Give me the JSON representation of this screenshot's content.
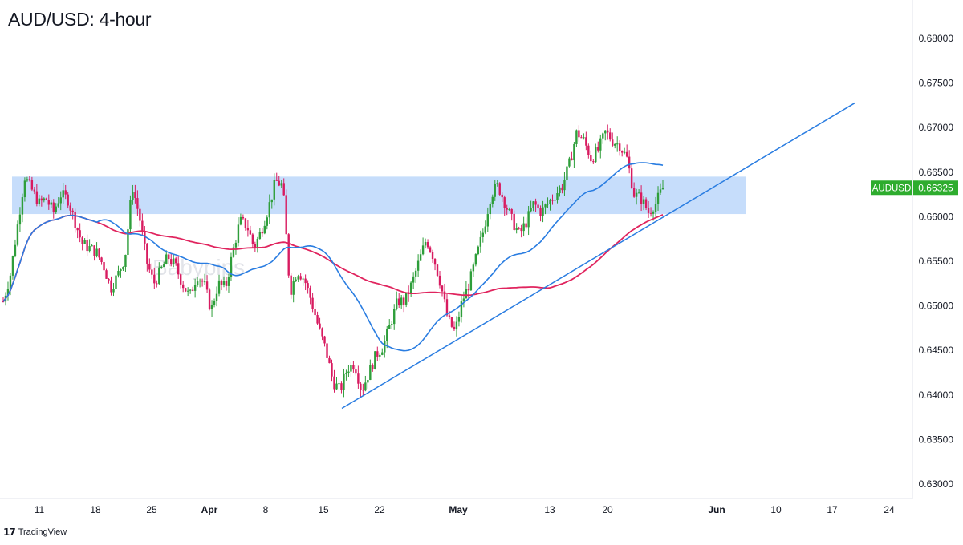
{
  "title": "AUD/USD: 4-hour",
  "watermark": "Babypips",
  "brand": {
    "logo": "𝟭𝟳",
    "name": "TradingView"
  },
  "last_price": {
    "symbol": "AUDUSD",
    "value": "0.66325"
  },
  "colors": {
    "up": "#26a69a",
    "up_body": "#2e9e3a",
    "down": "#d81b60",
    "ma_fast": "#2a7de1",
    "ma_slow": "#e0245e",
    "zone": "#bcd7fa",
    "trend": "#2a7de1",
    "badge": "#2eac2e"
  },
  "chart_data": {
    "type": "candlestick",
    "title": "AUD/USD: 4-hour",
    "ylim": [
      0.628,
      0.685
    ],
    "y_ticks": [
      "0.63000",
      "0.63500",
      "0.64000",
      "0.64500",
      "0.65000",
      "0.65500",
      "0.66000",
      "0.66500",
      "0.67000",
      "0.67500",
      "0.68000"
    ],
    "x_ticks": [
      {
        "label": "11",
        "x": 49
      },
      {
        "label": "18",
        "x": 119
      },
      {
        "label": "25",
        "x": 189
      },
      {
        "label": "Apr",
        "x": 261
      },
      {
        "label": "8",
        "x": 331
      },
      {
        "label": "15",
        "x": 403
      },
      {
        "label": "22",
        "x": 473
      },
      {
        "label": "May",
        "x": 571
      },
      {
        "label": "13",
        "x": 685
      },
      {
        "label": "20",
        "x": 757
      },
      {
        "label": "Jun",
        "x": 893
      },
      {
        "label": "10",
        "x": 967
      },
      {
        "label": "17",
        "x": 1037
      },
      {
        "label": "24",
        "x": 1108
      }
    ],
    "resistance_zone": {
      "low": 0.6603,
      "high": 0.6645
    },
    "trendline": {
      "from": 0.6385,
      "to": 0.6728
    },
    "ma_slow_last": 0.6557,
    "price_path": [
      0.6505,
      0.6535,
      0.659,
      0.6645,
      0.663,
      0.6615,
      0.662,
      0.6605,
      0.6625,
      0.662,
      0.6595,
      0.657,
      0.6565,
      0.656,
      0.6545,
      0.652,
      0.6535,
      0.6555,
      0.6635,
      0.66,
      0.655,
      0.6525,
      0.654,
      0.6555,
      0.6545,
      0.6525,
      0.651,
      0.6535,
      0.6525,
      0.6495,
      0.6525,
      0.652,
      0.656,
      0.6595,
      0.659,
      0.6565,
      0.6585,
      0.661,
      0.664,
      0.6635,
      0.6515,
      0.654,
      0.653,
      0.6505,
      0.6475,
      0.645,
      0.6415,
      0.6405,
      0.643,
      0.6435,
      0.6405,
      0.6425,
      0.6445,
      0.6455,
      0.648,
      0.6505,
      0.6505,
      0.6525,
      0.655,
      0.6575,
      0.6555,
      0.6525,
      0.6485,
      0.647,
      0.6505,
      0.6525,
      0.6555,
      0.6585,
      0.6625,
      0.6635,
      0.6615,
      0.6595,
      0.658,
      0.6595,
      0.6615,
      0.6605,
      0.6615,
      0.6625,
      0.6635,
      0.666,
      0.6695,
      0.6685,
      0.6665,
      0.6675,
      0.6695,
      0.6685,
      0.668,
      0.6665,
      0.6625,
      0.662,
      0.6605,
      0.6615,
      0.6632
    ]
  }
}
